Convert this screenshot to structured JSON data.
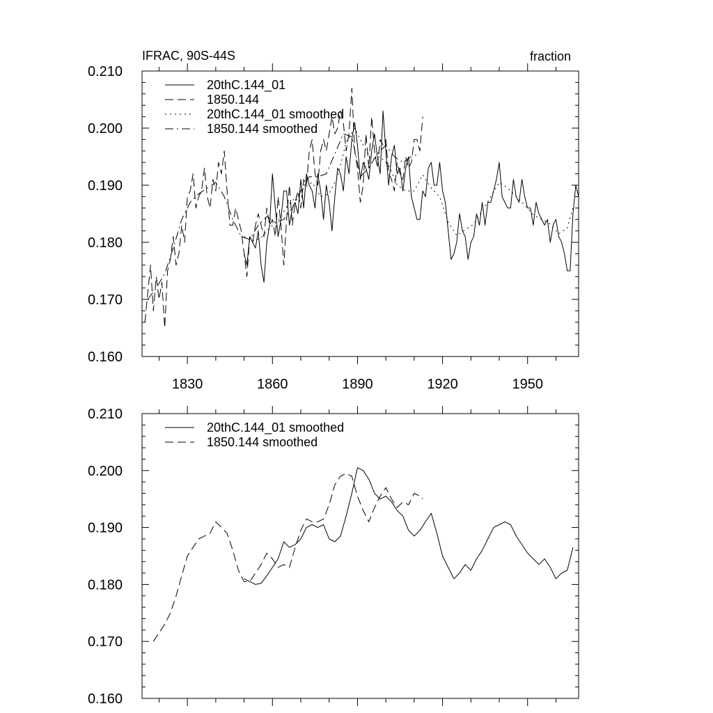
{
  "chart_data": [
    {
      "type": "line",
      "title": "IFRAC, 90S-44S",
      "units": "fraction",
      "xlabel": "",
      "ylabel": "",
      "xlim": [
        1814,
        1968
      ],
      "ylim": [
        0.16,
        0.21
      ],
      "xticks": [
        1830,
        1860,
        1890,
        1920,
        1950
      ],
      "xtick_labels": [
        "1830",
        "1860",
        "1890",
        "1920",
        "1950"
      ],
      "yticks": [
        0.16,
        0.17,
        0.18,
        0.19,
        0.2,
        0.21
      ],
      "ytick_labels": [
        "0.160",
        "0.170",
        "0.180",
        "0.190",
        "0.200",
        "0.210"
      ],
      "legend_position": "top-left",
      "series": [
        {
          "name": "20thC.144_01",
          "style": "solid",
          "x": [
            1850,
            1851,
            1852,
            1853,
            1854,
            1855,
            1856,
            1857,
            1858,
            1859,
            1860,
            1861,
            1862,
            1863,
            1864,
            1865,
            1866,
            1867,
            1868,
            1869,
            1870,
            1871,
            1872,
            1873,
            1874,
            1875,
            1876,
            1877,
            1878,
            1879,
            1880,
            1881,
            1882,
            1883,
            1884,
            1885,
            1886,
            1887,
            1888,
            1889,
            1890,
            1891,
            1892,
            1893,
            1894,
            1895,
            1896,
            1897,
            1898,
            1899,
            1900,
            1901,
            1902,
            1903,
            1904,
            1905,
            1906,
            1907,
            1908,
            1909,
            1910,
            1911,
            1912,
            1913,
            1914,
            1915,
            1916,
            1917,
            1918,
            1919,
            1920,
            1921,
            1922,
            1923,
            1924,
            1925,
            1926,
            1927,
            1928,
            1929,
            1930,
            1931,
            1932,
            1933,
            1934,
            1935,
            1936,
            1937,
            1938,
            1939,
            1940,
            1941,
            1942,
            1943,
            1944,
            1945,
            1946,
            1947,
            1948,
            1949,
            1950,
            1951,
            1952,
            1953,
            1954,
            1955,
            1956,
            1957,
            1958,
            1959,
            1960,
            1961,
            1962,
            1963,
            1964,
            1965,
            1966,
            1967,
            1968
          ],
          "values": [
            0.178,
            0.176,
            0.181,
            0.18,
            0.179,
            0.182,
            0.176,
            0.173,
            0.18,
            0.183,
            0.192,
            0.186,
            0.181,
            0.184,
            0.189,
            0.189,
            0.183,
            0.186,
            0.187,
            0.185,
            0.191,
            0.186,
            0.192,
            0.19,
            0.189,
            0.186,
            0.192,
            0.189,
            0.184,
            0.19,
            0.187,
            0.182,
            0.188,
            0.193,
            0.192,
            0.189,
            0.195,
            0.192,
            0.198,
            0.201,
            0.197,
            0.191,
            0.194,
            0.193,
            0.191,
            0.196,
            0.199,
            0.195,
            0.192,
            0.203,
            0.196,
            0.19,
            0.195,
            0.197,
            0.192,
            0.193,
            0.189,
            0.193,
            0.195,
            0.188,
            0.186,
            0.184,
            0.184,
            0.189,
            0.188,
            0.193,
            0.194,
            0.19,
            0.19,
            0.194,
            0.189,
            0.187,
            0.182,
            0.177,
            0.178,
            0.18,
            0.185,
            0.182,
            0.181,
            0.177,
            0.18,
            0.181,
            0.185,
            0.183,
            0.187,
            0.183,
            0.187,
            0.187,
            0.189,
            0.191,
            0.194,
            0.188,
            0.187,
            0.186,
            0.186,
            0.191,
            0.188,
            0.187,
            0.191,
            0.188,
            0.186,
            0.186,
            0.183,
            0.187,
            0.185,
            0.184,
            0.183,
            0.184,
            0.18,
            0.183,
            0.184,
            0.181,
            0.18,
            0.178,
            0.175,
            0.175,
            0.185,
            0.19,
            0.188
          ]
        },
        {
          "name": "1850.144",
          "style": "dashed",
          "x": [
            1815,
            1816,
            1817,
            1818,
            1819,
            1820,
            1821,
            1822,
            1823,
            1824,
            1825,
            1826,
            1827,
            1828,
            1829,
            1830,
            1831,
            1832,
            1833,
            1834,
            1835,
            1836,
            1837,
            1838,
            1839,
            1840,
            1841,
            1842,
            1843,
            1844,
            1845,
            1846,
            1847,
            1848,
            1849,
            1850,
            1851,
            1852,
            1853,
            1854,
            1855,
            1856,
            1857,
            1858,
            1859,
            1860,
            1861,
            1862,
            1863,
            1864,
            1865,
            1866,
            1867,
            1868,
            1869,
            1870,
            1871,
            1872,
            1873,
            1874,
            1875,
            1876,
            1877,
            1878,
            1879,
            1880,
            1881,
            1882,
            1883,
            1884,
            1885,
            1886,
            1887,
            1888,
            1889,
            1890,
            1891,
            1892,
            1893,
            1894,
            1895,
            1896,
            1897,
            1898,
            1899,
            1900,
            1901,
            1902,
            1903,
            1904,
            1905,
            1906,
            1907,
            1908,
            1909,
            1910,
            1911,
            1912,
            1913
          ],
          "values": [
            0.166,
            0.171,
            0.176,
            0.168,
            0.174,
            0.17,
            0.173,
            0.165,
            0.175,
            0.177,
            0.181,
            0.176,
            0.178,
            0.183,
            0.18,
            0.188,
            0.189,
            0.192,
            0.186,
            0.188,
            0.189,
            0.193,
            0.188,
            0.186,
            0.191,
            0.189,
            0.194,
            0.192,
            0.196,
            0.189,
            0.183,
            0.183,
            0.186,
            0.184,
            0.182,
            0.178,
            0.174,
            0.181,
            0.18,
            0.183,
            0.185,
            0.183,
            0.181,
            0.186,
            0.183,
            0.184,
            0.181,
            0.188,
            0.183,
            0.176,
            0.184,
            0.19,
            0.183,
            0.187,
            0.189,
            0.186,
            0.191,
            0.19,
            0.196,
            0.198,
            0.192,
            0.19,
            0.196,
            0.198,
            0.196,
            0.199,
            0.202,
            0.199,
            0.2,
            0.203,
            0.201,
            0.196,
            0.199,
            0.207,
            0.196,
            0.193,
            0.187,
            0.19,
            0.199,
            0.193,
            0.202,
            0.196,
            0.193,
            0.198,
            0.197,
            0.198,
            0.192,
            0.191,
            0.189,
            0.194,
            0.192,
            0.191,
            0.195,
            0.193,
            0.194,
            0.198,
            0.198,
            0.196,
            0.202
          ]
        },
        {
          "name": "20thC.144_01 smoothed",
          "style": "dotted",
          "x": [
            1850,
            1853,
            1856,
            1859,
            1862,
            1865,
            1868,
            1871,
            1874,
            1877,
            1880,
            1883,
            1886,
            1889,
            1892,
            1895,
            1898,
            1901,
            1904,
            1907,
            1910,
            1913,
            1916,
            1919,
            1922,
            1925,
            1928,
            1931,
            1934,
            1937,
            1940,
            1943,
            1946,
            1949,
            1952,
            1955,
            1958,
            1961,
            1964,
            1966
          ],
          "values": [
            0.181,
            0.1802,
            0.1808,
            0.1825,
            0.1838,
            0.1862,
            0.1878,
            0.1895,
            0.1905,
            0.188,
            0.1885,
            0.1915,
            0.1975,
            0.2,
            0.197,
            0.1945,
            0.195,
            0.1935,
            0.19,
            0.189,
            0.189,
            0.1918,
            0.1895,
            0.188,
            0.1835,
            0.1812,
            0.1822,
            0.1832,
            0.1855,
            0.188,
            0.1905,
            0.1895,
            0.188,
            0.1865,
            0.1848,
            0.184,
            0.1832,
            0.1815,
            0.1825,
            0.186
          ]
        },
        {
          "name": "1850.144 smoothed",
          "style": "dash-dot",
          "x": [
            1816,
            1819,
            1822,
            1825,
            1828,
            1831,
            1834,
            1837,
            1840,
            1843,
            1846,
            1849,
            1852,
            1855,
            1858,
            1861,
            1864,
            1867,
            1870,
            1873,
            1876,
            1879,
            1882,
            1885,
            1888,
            1891,
            1894,
            1897,
            1900,
            1903,
            1906,
            1909,
            1912
          ],
          "values": [
            0.17,
            0.172,
            0.1745,
            0.179,
            0.184,
            0.187,
            0.1885,
            0.1895,
            0.1905,
            0.188,
            0.184,
            0.181,
            0.1805,
            0.183,
            0.1845,
            0.1835,
            0.184,
            0.186,
            0.189,
            0.1915,
            0.1915,
            0.192,
            0.1955,
            0.199,
            0.1985,
            0.1915,
            0.193,
            0.1955,
            0.197,
            0.195,
            0.194,
            0.195,
            0.1955
          ]
        }
      ]
    },
    {
      "type": "line",
      "title": "",
      "xlabel": "",
      "ylabel": "",
      "xlim": [
        1814,
        1968
      ],
      "ylim": [
        0.16,
        0.21
      ],
      "xticks": [
        1830,
        1860,
        1890,
        1920,
        1950
      ],
      "yticks": [
        0.16,
        0.17,
        0.18,
        0.19,
        0.2,
        0.21
      ],
      "ytick_labels": [
        "0.160",
        "0.170",
        "0.180",
        "0.190",
        "0.200",
        "0.210"
      ],
      "legend_position": "top-left",
      "series": [
        {
          "name": "20thC.144_01 smoothed",
          "style": "solid",
          "x": [
            1850,
            1852,
            1854,
            1856,
            1858,
            1860,
            1862,
            1864,
            1866,
            1868,
            1870,
            1872,
            1874,
            1876,
            1878,
            1880,
            1882,
            1884,
            1886,
            1888,
            1890,
            1892,
            1894,
            1896,
            1898,
            1900,
            1902,
            1904,
            1906,
            1908,
            1910,
            1912,
            1914,
            1916,
            1918,
            1920,
            1922,
            1924,
            1926,
            1928,
            1930,
            1932,
            1934,
            1936,
            1938,
            1940,
            1942,
            1944,
            1946,
            1948,
            1950,
            1952,
            1954,
            1956,
            1958,
            1960,
            1962,
            1964,
            1966
          ],
          "values": [
            0.181,
            0.1805,
            0.18,
            0.1802,
            0.1815,
            0.183,
            0.1845,
            0.1875,
            0.1865,
            0.187,
            0.188,
            0.19,
            0.1905,
            0.19,
            0.1905,
            0.188,
            0.1875,
            0.1885,
            0.192,
            0.196,
            0.2005,
            0.2,
            0.1985,
            0.196,
            0.195,
            0.1955,
            0.1945,
            0.193,
            0.192,
            0.1895,
            0.1885,
            0.1895,
            0.191,
            0.1925,
            0.189,
            0.185,
            0.183,
            0.181,
            0.182,
            0.1835,
            0.1825,
            0.1845,
            0.186,
            0.188,
            0.19,
            0.1905,
            0.191,
            0.1905,
            0.1885,
            0.187,
            0.1855,
            0.1845,
            0.1835,
            0.1845,
            0.183,
            0.181,
            0.182,
            0.1825,
            0.1865
          ]
        },
        {
          "name": "1850.144 smoothed",
          "style": "dashed",
          "x": [
            1818,
            1820,
            1822,
            1824,
            1826,
            1828,
            1830,
            1832,
            1834,
            1836,
            1838,
            1840,
            1842,
            1844,
            1846,
            1848,
            1850,
            1852,
            1854,
            1856,
            1858,
            1860,
            1862,
            1864,
            1866,
            1868,
            1870,
            1872,
            1874,
            1876,
            1878,
            1880,
            1882,
            1884,
            1886,
            1888,
            1890,
            1892,
            1894,
            1896,
            1898,
            1900,
            1902,
            1904,
            1906,
            1908,
            1910,
            1912,
            1913
          ],
          "values": [
            0.17,
            0.1715,
            0.173,
            0.175,
            0.178,
            0.1815,
            0.185,
            0.1865,
            0.188,
            0.1885,
            0.189,
            0.191,
            0.19,
            0.189,
            0.186,
            0.1825,
            0.1805,
            0.1805,
            0.182,
            0.1835,
            0.1855,
            0.1845,
            0.183,
            0.1835,
            0.183,
            0.1865,
            0.1895,
            0.1915,
            0.191,
            0.191,
            0.1915,
            0.194,
            0.1975,
            0.199,
            0.1995,
            0.199,
            0.1955,
            0.193,
            0.191,
            0.1935,
            0.1955,
            0.197,
            0.195,
            0.1935,
            0.1945,
            0.194,
            0.196,
            0.1955,
            0.195
          ]
        }
      ]
    }
  ]
}
